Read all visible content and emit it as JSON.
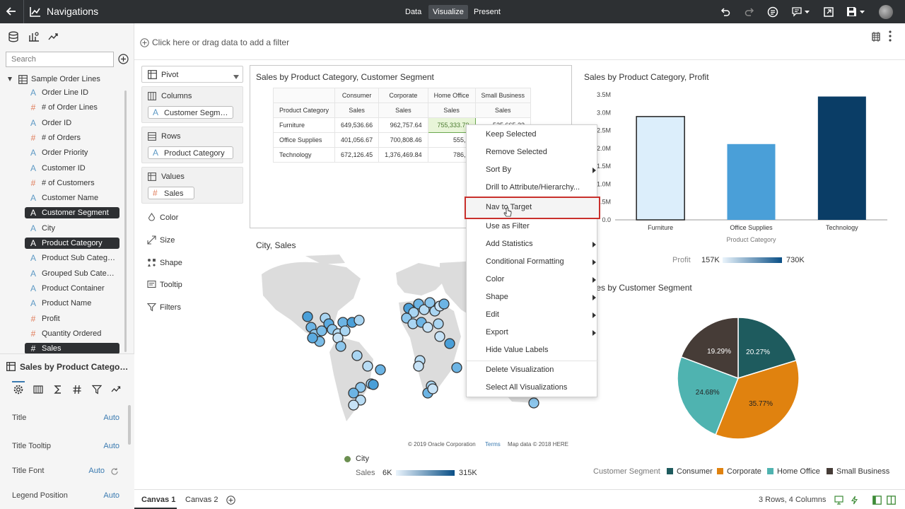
{
  "topbar": {
    "title": "Navigations",
    "modes": [
      "Data",
      "Visualize",
      "Present"
    ],
    "active_mode": "Visualize",
    "icons": [
      "undo-icon",
      "redo-icon",
      "narrate-icon",
      "comment-icon",
      "export-icon",
      "save-icon",
      "avatar"
    ]
  },
  "left_panel": {
    "search_placeholder": "Search",
    "data_source": "Sample Order Lines",
    "items": [
      {
        "type": "A",
        "label": "Order Line ID",
        "selected": false
      },
      {
        "type": "#",
        "label": "# of Order Lines",
        "selected": false
      },
      {
        "type": "A",
        "label": "Order ID",
        "selected": false
      },
      {
        "type": "#",
        "label": "# of Orders",
        "selected": false
      },
      {
        "type": "A",
        "label": "Order Priority",
        "selected": false
      },
      {
        "type": "A",
        "label": "Customer ID",
        "selected": false
      },
      {
        "type": "#",
        "label": "# of Customers",
        "selected": false
      },
      {
        "type": "A",
        "label": "Customer Name",
        "selected": false
      },
      {
        "type": "A",
        "label": "Customer Segment",
        "selected": true
      },
      {
        "type": "A",
        "label": "City",
        "selected": false
      },
      {
        "type": "A",
        "label": "Product Category",
        "selected": true
      },
      {
        "type": "A",
        "label": "Product Sub Category",
        "selected": false
      },
      {
        "type": "A",
        "label": "Grouped Sub Category",
        "selected": false
      },
      {
        "type": "A",
        "label": "Product Container",
        "selected": false
      },
      {
        "type": "A",
        "label": "Product Name",
        "selected": false
      },
      {
        "type": "#",
        "label": "Profit",
        "selected": false
      },
      {
        "type": "#",
        "label": "Quantity Ordered",
        "selected": false
      },
      {
        "type": "#",
        "label": "Sales",
        "selected": true
      }
    ]
  },
  "properties": {
    "viz_title": "Sales by Product Category, Customer Segment",
    "rows": [
      {
        "label": "Title",
        "value": "Auto"
      },
      {
        "label": "Title Tooltip",
        "value": "Auto"
      },
      {
        "label": "Title Font",
        "value": "Auto"
      },
      {
        "label": "Legend Position",
        "value": "Auto"
      }
    ]
  },
  "grammar": {
    "viz_type": "Pivot",
    "columns_label": "Columns",
    "columns_value": "Customer Segment",
    "rows_label": "Rows",
    "rows_value": "Product Category",
    "values_label": "Values",
    "values_value": "Sales",
    "extras": [
      "Color",
      "Size",
      "Shape",
      "Tooltip",
      "Filters"
    ]
  },
  "filter_bar": {
    "prompt": "Click here or drag data to add a filter"
  },
  "pivot": {
    "title": "Sales by Product Category, Customer Segment",
    "row_header": "Product Category",
    "measure": "Sales",
    "columns": [
      "Consumer",
      "Corporate",
      "Home Office",
      "Small Business"
    ],
    "rows": [
      {
        "label": "Furniture",
        "values": [
          "649,536.66",
          "962,757.64",
          "755,333.79",
          "525,665.23"
        ]
      },
      {
        "label": "Office Supplies",
        "values": [
          "401,056.67",
          "700,808.46",
          "555,6",
          ""
        ]
      },
      {
        "label": "Technology",
        "values": [
          "672,126.45",
          "1,376,469.84",
          "786,5",
          ""
        ]
      }
    ]
  },
  "context_menu": {
    "items": [
      {
        "label": "Keep Selected",
        "submenu": false
      },
      {
        "label": "Remove Selected",
        "submenu": false
      },
      {
        "label": "Sort By",
        "submenu": true
      },
      {
        "label": "Drill to Attribute/Hierarchy...",
        "submenu": false
      },
      {
        "label": "Nav to Target",
        "submenu": false,
        "highlighted": true
      },
      {
        "label": "Use as Filter",
        "submenu": false
      },
      {
        "label": "Add Statistics",
        "submenu": true
      },
      {
        "label": "Conditional Formatting",
        "submenu": true
      },
      {
        "label": "Color",
        "submenu": true
      },
      {
        "label": "Shape",
        "submenu": true
      },
      {
        "label": "Edit",
        "submenu": true
      },
      {
        "label": "Export",
        "submenu": true
      },
      {
        "label": "Hide Value Labels",
        "submenu": false
      },
      {
        "label": "Delete Visualization",
        "submenu": false
      },
      {
        "label": "Select All Visualizations",
        "submenu": false
      }
    ]
  },
  "map": {
    "title": "City, Sales",
    "copyright": "© 2019 Oracle Corporation",
    "terms": "Terms",
    "mapdata": "Map data © 2018 HERE",
    "legend_city": "City",
    "legend_sales": "Sales",
    "legend_min": "6K",
    "legend_max": "315K"
  },
  "chart_data": [
    {
      "type": "bar",
      "title": "Sales by Product Category, Profit",
      "categories": [
        "Furniture",
        "Office Supplies",
        "Technology"
      ],
      "values": [
        2.89,
        2.12,
        3.45
      ],
      "xlabel": "Product Category",
      "ylabel": "",
      "ylim": [
        0,
        3.5
      ],
      "yticks": [
        "0.0",
        "0.5M",
        "1.0M",
        "1.5M",
        "2.0M",
        "2.5M",
        "3.0M",
        "3.5M"
      ],
      "profit_legend": {
        "label": "Profit",
        "min": "157K",
        "max": "730K"
      },
      "colors": [
        "#dceefb",
        "#4a9fd8",
        "#0a3d66"
      ]
    },
    {
      "type": "pie",
      "title": "Sales by Customer Segment",
      "labels": [
        "Consumer",
        "Corporate",
        "Home Office",
        "Small Business"
      ],
      "values": [
        20.27,
        35.77,
        24.68,
        19.29
      ],
      "value_labels": [
        "20.27%",
        "35.77%",
        "24.68%",
        "19.29%"
      ],
      "colors": [
        "#1e5b5e",
        "#e0820f",
        "#4fb3b0",
        "#463c37"
      ],
      "legend_title": "Customer Segment",
      "legend": "bottom"
    }
  ],
  "bottom": {
    "tabs": [
      "Canvas 1",
      "Canvas 2"
    ],
    "status": "3 Rows, 4 Columns"
  }
}
